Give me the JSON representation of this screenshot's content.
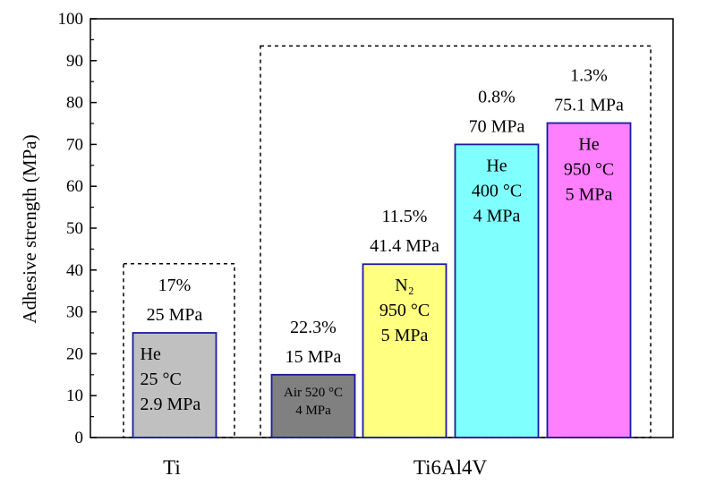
{
  "chart_data": {
    "type": "bar",
    "ylabel": "Adhesive strength (MPa)",
    "ylim": [
      0,
      100
    ],
    "yticks": [
      0,
      10,
      20,
      30,
      40,
      50,
      60,
      70,
      80,
      90,
      100
    ],
    "groups": [
      {
        "label": "Ti"
      },
      {
        "label": "Ti6Al4V"
      }
    ],
    "bars": [
      {
        "group": "Ti",
        "value": 25,
        "color": "#c0c0c0",
        "above": [
          "17%",
          "25 MPa"
        ],
        "inside": [
          "He",
          "25 °C",
          "2.9 MPa"
        ]
      },
      {
        "group": "Ti6Al4V",
        "value": 15,
        "color": "#808080",
        "above": [
          "22.3%",
          "15 MPa"
        ],
        "inside": [
          "Air 520 °C",
          "4 MPa"
        ]
      },
      {
        "group": "Ti6Al4V",
        "value": 41.4,
        "color": "#ffff80",
        "above": [
          "11.5%",
          "41.4 MPa"
        ],
        "inside": [
          "N₂",
          "950 °C",
          "5 MPa"
        ]
      },
      {
        "group": "Ti6Al4V",
        "value": 70,
        "color": "#80ffff",
        "above": [
          "0.8%",
          "70 MPa"
        ],
        "inside": [
          "He",
          "400 °C",
          "4 MPa"
        ]
      },
      {
        "group": "Ti6Al4V",
        "value": 75.1,
        "color": "#ff80ff",
        "above": [
          "1.3%",
          "75.1 MPa"
        ],
        "inside": [
          "He",
          "950 °C",
          "5 MPa"
        ]
      }
    ],
    "colors": {
      "bar_edge": "#1a1aa0",
      "axis": "#000000"
    }
  }
}
